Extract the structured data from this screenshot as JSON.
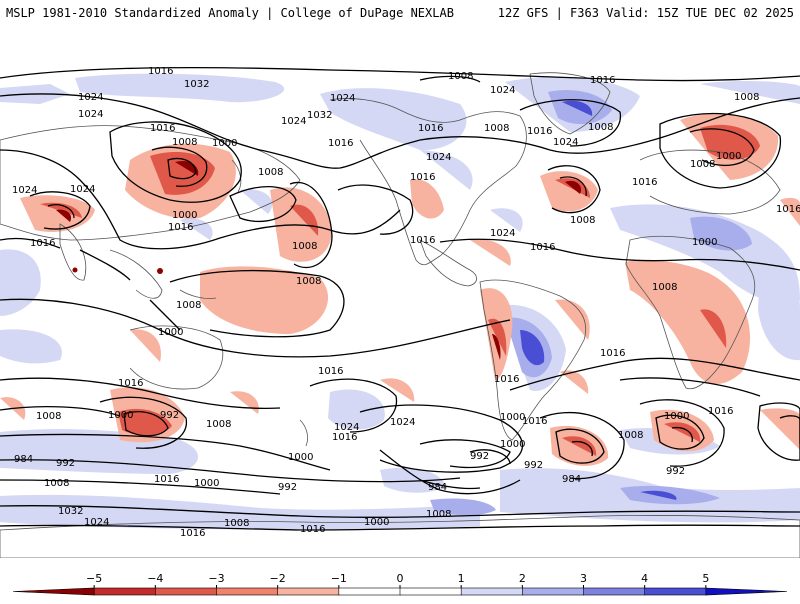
{
  "header": {
    "title_left": "MSLP 1981-2010 Standardized Anomaly | College of DuPage NEXLAB",
    "title_right": "12Z GFS | F363 Valid: 15Z TUE DEC 02 2025"
  },
  "map": {
    "contour_labels": [
      "1016",
      "1032",
      "1024",
      "1024",
      "1016",
      "1008",
      "1000",
      "1024",
      "1032",
      "1016",
      "1024",
      "1008",
      "1016",
      "1008",
      "1024",
      "1016",
      "1008",
      "1016",
      "1024",
      "1008",
      "1008",
      "1024",
      "1016",
      "1024",
      "1000",
      "1008",
      "1016",
      "1016",
      "1024",
      "1016",
      "1000",
      "1008",
      "1016",
      "1016",
      "1008",
      "1008",
      "1000",
      "1016",
      "1008",
      "1000",
      "992",
      "984",
      "992",
      "1008",
      "1016",
      "1032",
      "1024",
      "1008",
      "1016",
      "1024",
      "1016",
      "1000",
      "1016",
      "1016",
      "1024",
      "1016",
      "1000",
      "992",
      "992",
      "984",
      "992",
      "984",
      "1008",
      "1000",
      "1008",
      "1016",
      "1000",
      "992",
      "1008",
      "1016",
      "1016",
      "1008",
      "1000",
      "1000",
      "1016",
      "1008",
      "1000",
      "1024"
    ],
    "colors": {
      "neg1": "#f7b3a0",
      "neg2": "#f0826e",
      "neg3": "#e0584a",
      "neg4": "#c42a2a",
      "neg5": "#8b0000",
      "pos1": "#d4d8f4",
      "pos2": "#a8aeec",
      "pos3": "#7d82e0",
      "pos4": "#4a4ed4",
      "pos5": "#1010c0"
    }
  },
  "colorbar": {
    "ticks": [
      "-5",
      "-4",
      "-3",
      "-2",
      "-1",
      "0",
      "1",
      "2",
      "3",
      "4",
      "5"
    ],
    "colors": [
      "#8b0000",
      "#c42a2a",
      "#e0584a",
      "#f0826e",
      "#f7b3a0",
      "#ffffff",
      "#ffffff",
      "#d4d8f4",
      "#a8aeec",
      "#7d82e0",
      "#4a4ed4",
      "#1010c0"
    ]
  }
}
